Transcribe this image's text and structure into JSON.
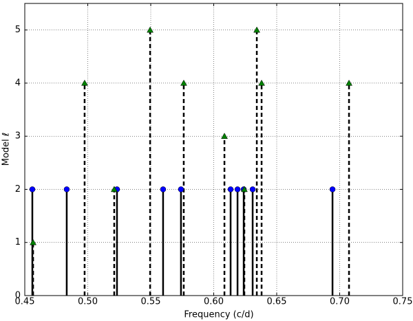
{
  "chart_data": {
    "type": "stem",
    "xlabel": "Frequency (c/d)",
    "ylabel": "Model ℓ",
    "xlim": [
      0.45,
      0.75
    ],
    "xticks": [
      0.45,
      {
        "value": 0.5,
        "label": "0.50"
      },
      0.55,
      {
        "value": 0.6,
        "label": "0.60"
      },
      0.65,
      {
        "value": 0.7,
        "label": "0.70"
      },
      0.75
    ],
    "ylim": [
      0,
      5.5
    ],
    "yticks": [
      0,
      1,
      2,
      3,
      4,
      5
    ],
    "grid": true,
    "series": [
      {
        "color": "#0000ff",
        "marker": "circle",
        "linestyle": "solid",
        "x": [
          0.456,
          0.4833,
          0.5232,
          0.5598,
          0.574,
          0.6134,
          0.6189,
          0.6238,
          0.6309,
          0.6943
        ],
        "values": [
          2,
          2,
          2,
          2,
          2,
          2,
          2,
          2,
          2,
          2
        ]
      },
      {
        "color": "#008000",
        "marker": "triangle",
        "linestyle": "dashed",
        "x": [
          0.4566,
          0.4975,
          0.521,
          0.5495,
          0.5762,
          0.6085,
          0.6243,
          0.6342,
          0.638,
          0.7074
        ],
        "values": [
          1,
          4,
          2,
          5,
          4,
          3,
          2,
          5,
          4,
          4
        ]
      }
    ]
  }
}
